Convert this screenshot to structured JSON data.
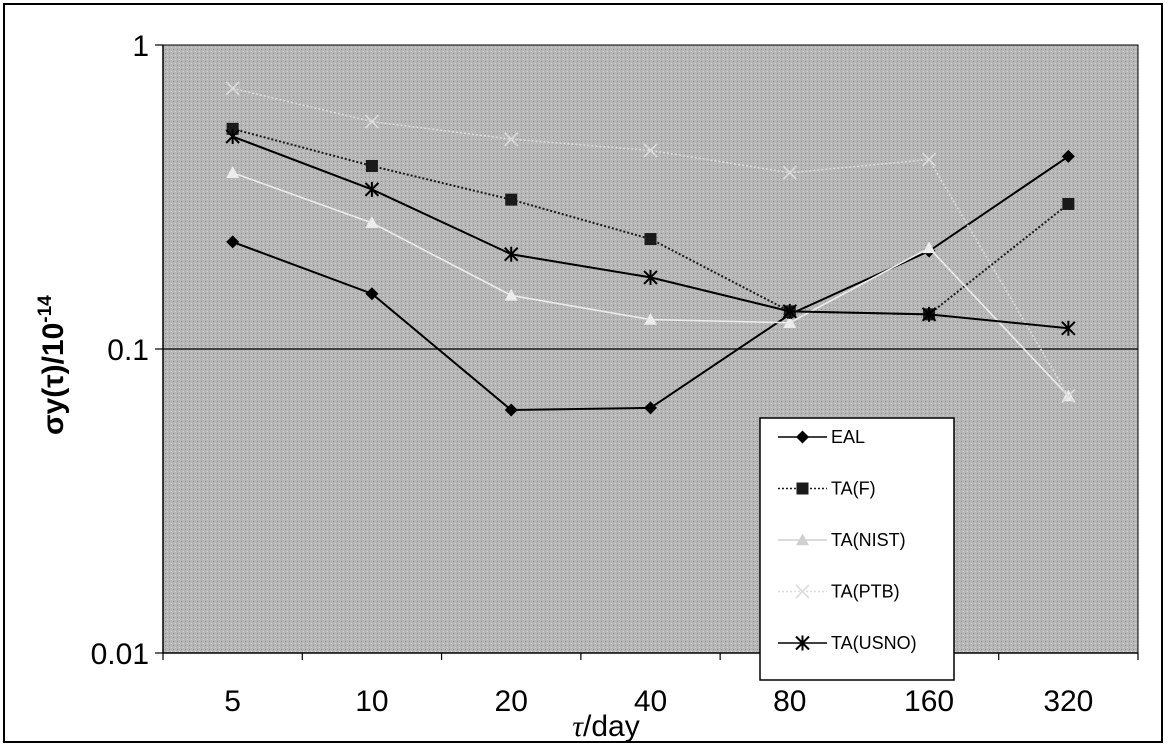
{
  "chart_data": {
    "type": "line",
    "scale_y": "log",
    "xlabel_symbol": "τ",
    "xlabel_unit": "/day",
    "ylabel_text": "σy(τ)/10",
    "ylabel_exp": "-14",
    "categories": [
      "5",
      "10",
      "20",
      "40",
      "80",
      "160",
      "320"
    ],
    "y_ticks": [
      "1",
      "0.1",
      "0.01"
    ],
    "ylim": [
      0.01,
      1
    ],
    "legend_position": "bottom-right",
    "grid": "horizontal major gridline at 0.1",
    "plot_background": "#b4b4b4",
    "series": [
      {
        "name": "EAL",
        "marker": "diamond",
        "color": "#000000",
        "dash": "solid",
        "values": [
          0.225,
          0.152,
          0.063,
          0.064,
          0.13,
          0.21,
          0.43
        ]
      },
      {
        "name": "TA(F)",
        "marker": "square",
        "color": "#1a1a1a",
        "dash": "dotted",
        "values": [
          0.53,
          0.4,
          0.31,
          0.23,
          0.133,
          0.13,
          0.3
        ]
      },
      {
        "name": "TA(NIST)",
        "marker": "triangle",
        "color": "#ececec",
        "dash": "solid",
        "values": [
          0.38,
          0.26,
          0.15,
          0.125,
          0.122,
          0.215,
          0.07
        ]
      },
      {
        "name": "TA(PTB)",
        "marker": "x",
        "color": "#dcdcdc",
        "dash": "dotted",
        "values": [
          0.72,
          0.56,
          0.49,
          0.45,
          0.38,
          0.42,
          0.07
        ]
      },
      {
        "name": "TA(USNO)",
        "marker": "asterisk",
        "color": "#000000",
        "dash": "solid",
        "values": [
          0.5,
          0.335,
          0.205,
          0.172,
          0.133,
          0.13,
          0.117
        ]
      }
    ]
  }
}
